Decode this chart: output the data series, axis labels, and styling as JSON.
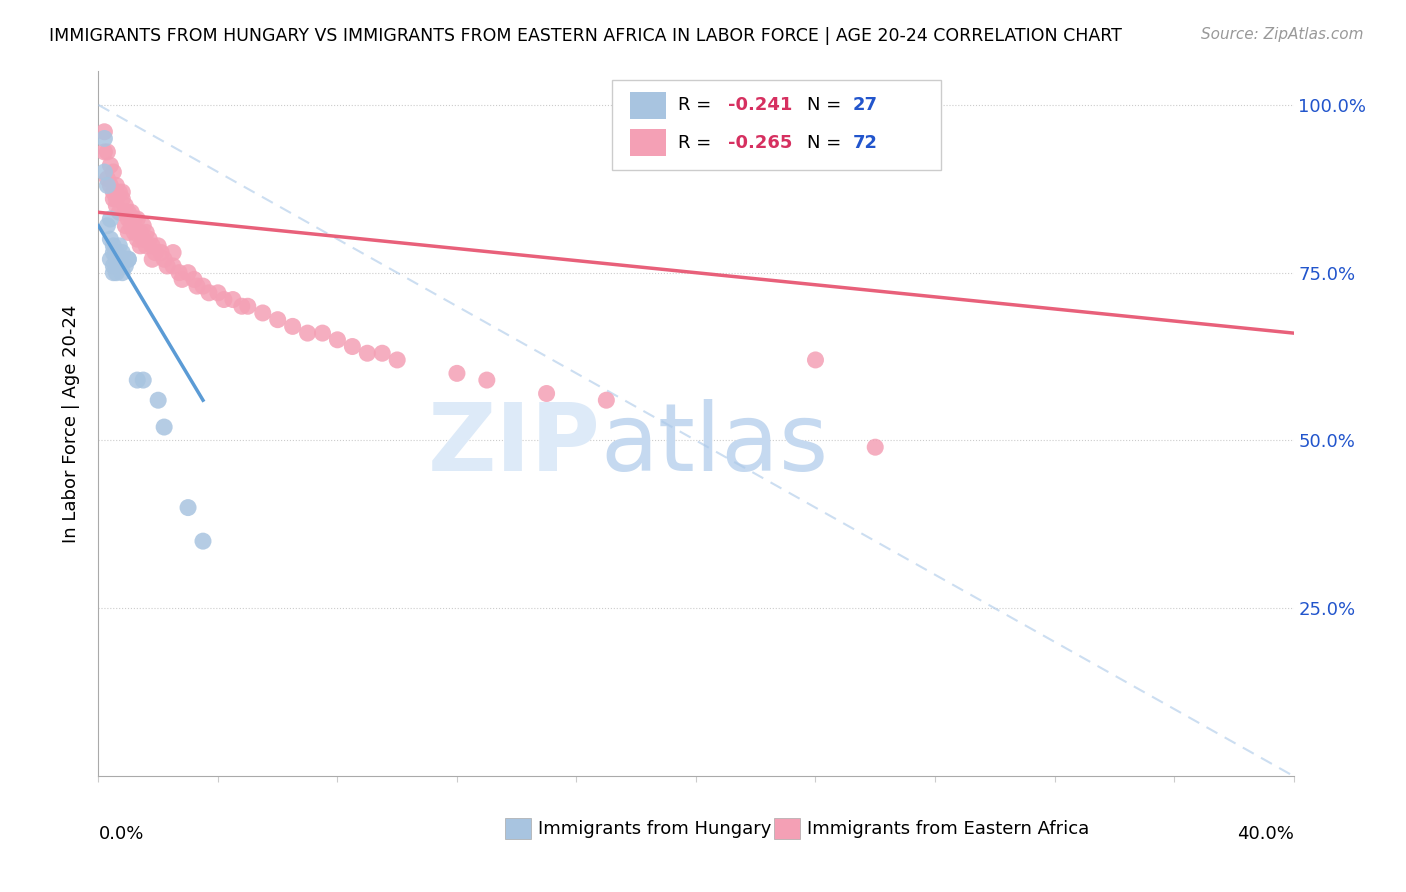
{
  "title": "IMMIGRANTS FROM HUNGARY VS IMMIGRANTS FROM EASTERN AFRICA IN LABOR FORCE | AGE 20-24 CORRELATION CHART",
  "source": "Source: ZipAtlas.com",
  "ylabel": "In Labor Force | Age 20-24",
  "legend1_r": "-0.241",
  "legend1_n": "27",
  "legend2_r": "-0.265",
  "legend2_n": "72",
  "legend_label1": "Immigrants from Hungary",
  "legend_label2": "Immigrants from Eastern Africa",
  "color_hungary": "#a8c4e0",
  "color_eastern_africa": "#f4a0b5",
  "color_hungary_line": "#5b9bd5",
  "color_eastern_africa_line": "#e8607a",
  "color_r_value": "#d63060",
  "color_n_value": "#2255cc",
  "hungary_x": [
    0.002,
    0.002,
    0.003,
    0.003,
    0.004,
    0.004,
    0.004,
    0.005,
    0.005,
    0.005,
    0.005,
    0.006,
    0.006,
    0.006,
    0.007,
    0.007,
    0.008,
    0.008,
    0.009,
    0.01,
    0.01,
    0.013,
    0.015,
    0.02,
    0.022,
    0.03,
    0.035
  ],
  "hungary_y": [
    0.95,
    0.9,
    0.88,
    0.82,
    0.83,
    0.8,
    0.77,
    0.79,
    0.78,
    0.76,
    0.75,
    0.78,
    0.77,
    0.75,
    0.79,
    0.77,
    0.78,
    0.75,
    0.76,
    0.77,
    0.77,
    0.59,
    0.59,
    0.56,
    0.52,
    0.4,
    0.35
  ],
  "eastern_africa_x": [
    0.002,
    0.002,
    0.003,
    0.003,
    0.004,
    0.004,
    0.005,
    0.005,
    0.005,
    0.006,
    0.006,
    0.006,
    0.007,
    0.007,
    0.008,
    0.008,
    0.009,
    0.009,
    0.009,
    0.01,
    0.01,
    0.01,
    0.011,
    0.011,
    0.012,
    0.012,
    0.013,
    0.013,
    0.014,
    0.014,
    0.015,
    0.015,
    0.016,
    0.016,
    0.017,
    0.018,
    0.018,
    0.019,
    0.02,
    0.021,
    0.022,
    0.023,
    0.025,
    0.025,
    0.027,
    0.028,
    0.03,
    0.032,
    0.033,
    0.035,
    0.037,
    0.04,
    0.042,
    0.045,
    0.048,
    0.05,
    0.055,
    0.06,
    0.065,
    0.07,
    0.075,
    0.08,
    0.085,
    0.09,
    0.095,
    0.1,
    0.12,
    0.13,
    0.15,
    0.17,
    0.24,
    0.26
  ],
  "eastern_africa_y": [
    0.96,
    0.93,
    0.93,
    0.89,
    0.91,
    0.88,
    0.9,
    0.87,
    0.86,
    0.88,
    0.86,
    0.85,
    0.87,
    0.84,
    0.87,
    0.86,
    0.85,
    0.84,
    0.82,
    0.84,
    0.83,
    0.81,
    0.84,
    0.82,
    0.83,
    0.81,
    0.83,
    0.8,
    0.81,
    0.79,
    0.82,
    0.8,
    0.81,
    0.79,
    0.8,
    0.79,
    0.77,
    0.78,
    0.79,
    0.78,
    0.77,
    0.76,
    0.78,
    0.76,
    0.75,
    0.74,
    0.75,
    0.74,
    0.73,
    0.73,
    0.72,
    0.72,
    0.71,
    0.71,
    0.7,
    0.7,
    0.69,
    0.68,
    0.67,
    0.66,
    0.66,
    0.65,
    0.64,
    0.63,
    0.63,
    0.62,
    0.6,
    0.59,
    0.57,
    0.56,
    0.62,
    0.49
  ],
  "hungary_trend_x": [
    0.0,
    0.035
  ],
  "hungary_trend_y": [
    0.82,
    0.56
  ],
  "eastern_trend_x": [
    0.0,
    0.4
  ],
  "eastern_trend_y": [
    0.84,
    0.66
  ],
  "xlim": [
    0.0,
    0.4
  ],
  "ylim": [
    0.0,
    1.05
  ],
  "yticks": [
    0.0,
    0.25,
    0.5,
    0.75,
    1.0
  ],
  "ytick_labels": [
    "",
    "25.0%",
    "50.0%",
    "75.0%",
    "100.0%"
  ]
}
